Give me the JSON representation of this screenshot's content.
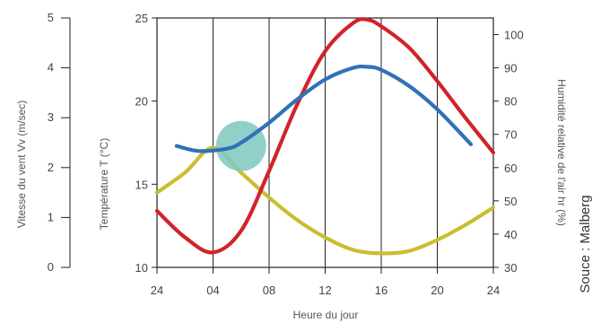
{
  "chart_data": {
    "type": "line",
    "xlabel": "Heure du jour",
    "x_tick_labels": [
      "24",
      "04",
      "08",
      "12",
      "16",
      "20",
      "24"
    ],
    "x_ticks": [
      0,
      4,
      8,
      12,
      16,
      20,
      24
    ],
    "xlim": [
      0,
      24
    ],
    "axes": {
      "wind": {
        "label": "Vitesse du vent Vv (m/sec)",
        "lim": [
          0,
          5
        ],
        "ticks": [
          0,
          1,
          2,
          3,
          4,
          5
        ],
        "tick_labels": [
          "0",
          "1",
          "2",
          "3",
          "4",
          "5"
        ]
      },
      "temperature": {
        "label": "Température T (°C)",
        "lim": [
          10,
          25
        ],
        "ticks": [
          10,
          15,
          20,
          25
        ],
        "tick_labels": [
          "10",
          "15",
          "20",
          "25"
        ]
      },
      "humidity": {
        "label": "Humidité relative de l'air hr (%)",
        "lim": [
          30,
          105
        ],
        "ticks": [
          30,
          40,
          50,
          60,
          70,
          80,
          90,
          100
        ],
        "tick_labels": [
          "30",
          "40",
          "50",
          "60",
          "70",
          "80",
          "90",
          "100"
        ]
      }
    },
    "series": [
      {
        "axis": "temperature",
        "color": "#d0242a",
        "x": [
          0,
          2,
          4,
          6,
          8,
          10,
          12,
          14,
          15,
          16,
          18,
          20,
          22,
          24
        ],
        "values": [
          13.4,
          11.8,
          10.9,
          12.2,
          15.8,
          19.8,
          23.0,
          24.7,
          24.9,
          24.5,
          23.2,
          21.2,
          19.0,
          16.9
        ]
      },
      {
        "axis": "humidity",
        "color": "#2f72b9",
        "x": [
          1.4,
          3,
          5,
          6,
          8,
          10,
          12,
          14,
          15,
          16,
          18,
          20,
          22.4
        ],
        "values": [
          66.5,
          65.0,
          65.7,
          67.5,
          73.5,
          80.5,
          86.5,
          90.0,
          90.3,
          89.4,
          84.5,
          77.5,
          67.0
        ]
      },
      {
        "axis": "wind",
        "color": "#c9be2f",
        "x": [
          0,
          2,
          4,
          6,
          8,
          10,
          12,
          14,
          16,
          18,
          20,
          22,
          24
        ],
        "values": [
          1.5,
          1.9,
          2.4,
          1.9,
          1.4,
          0.95,
          0.6,
          0.35,
          0.28,
          0.33,
          0.55,
          0.85,
          1.2
        ]
      }
    ],
    "highlight": {
      "x": 6,
      "temperature": 17.3,
      "color": "#7ec8c0"
    },
    "grid": {
      "vertical": true,
      "horizontal": false
    },
    "credit": "Souce : Malberg"
  }
}
